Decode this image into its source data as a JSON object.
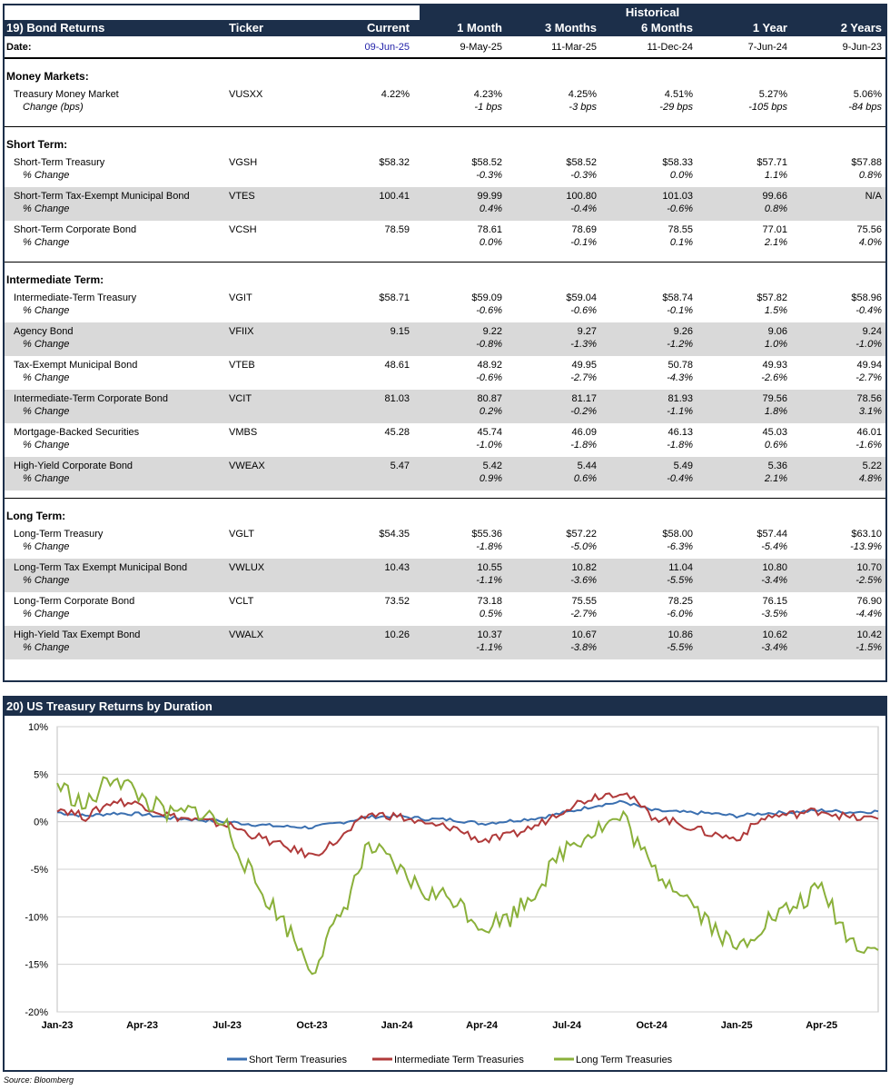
{
  "table": {
    "historical_label": "Historical",
    "header": {
      "title": "19) Bond Returns",
      "ticker": "Ticker",
      "current": "Current",
      "m1": "1 Month",
      "m3": "3 Months",
      "m6": "6 Months",
      "y1": "1 Year",
      "y2": "2 Years"
    },
    "dates": {
      "label": "Date:",
      "current": "09-Jun-25",
      "m1": "9-May-25",
      "m3": "11-Mar-25",
      "m6": "11-Dec-24",
      "y1": "7-Jun-24",
      "y2": "9-Jun-23"
    },
    "sections": [
      {
        "title": "Money Markets:",
        "rows": [
          {
            "name": "Treasury Money Market",
            "ticker": "VUSXX",
            "sub": "Change (bps)",
            "current": "4.22%",
            "m1": "4.23%",
            "m3": "4.25%",
            "m6": "4.51%",
            "y1": "5.27%",
            "y2": "5.06%",
            "c1": "-1 bps",
            "c3": "-3 bps",
            "c6": "-29 bps",
            "cy1": "-105 bps",
            "cy2": "-84 bps"
          }
        ]
      },
      {
        "title": "Short Term:",
        "rows": [
          {
            "name": "Short-Term Treasury",
            "ticker": "VGSH",
            "sub": "% Change",
            "current": "$58.32",
            "m1": "$58.52",
            "m3": "$58.52",
            "m6": "$58.33",
            "y1": "$57.71",
            "y2": "$57.88",
            "c1": "-0.3%",
            "c3": "-0.3%",
            "c6": "0.0%",
            "cy1": "1.1%",
            "cy2": "0.8%"
          },
          {
            "name": "Short-Term Tax-Exempt Municipal Bond",
            "ticker": "VTES",
            "sub": "% Change",
            "current": "100.41",
            "m1": "99.99",
            "m3": "100.80",
            "m6": "101.03",
            "y1": "99.66",
            "y2": "N/A",
            "c1": "0.4%",
            "c3": "-0.4%",
            "c6": "-0.6%",
            "cy1": "0.8%",
            "cy2": ""
          },
          {
            "name": "Short-Term Corporate Bond",
            "ticker": "VCSH",
            "sub": "% Change",
            "current": "78.59",
            "m1": "78.61",
            "m3": "78.69",
            "m6": "78.55",
            "y1": "77.01",
            "y2": "75.56",
            "c1": "0.0%",
            "c3": "-0.1%",
            "c6": "0.1%",
            "cy1": "2.1%",
            "cy2": "4.0%"
          }
        ]
      },
      {
        "title": "Intermediate Term:",
        "rows": [
          {
            "name": "Intermediate-Term Treasury",
            "ticker": "VGIT",
            "sub": "% Change",
            "current": "$58.71",
            "m1": "$59.09",
            "m3": "$59.04",
            "m6": "$58.74",
            "y1": "$57.82",
            "y2": "$58.96",
            "c1": "-0.6%",
            "c3": "-0.6%",
            "c6": "-0.1%",
            "cy1": "1.5%",
            "cy2": "-0.4%"
          },
          {
            "name": "Agency Bond",
            "ticker": "VFIIX",
            "sub": "% Change",
            "current": "9.15",
            "m1": "9.22",
            "m3": "9.27",
            "m6": "9.26",
            "y1": "9.06",
            "y2": "9.24",
            "c1": "-0.8%",
            "c3": "-1.3%",
            "c6": "-1.2%",
            "cy1": "1.0%",
            "cy2": "-1.0%"
          },
          {
            "name": "Tax-Exempt Municipal Bond",
            "ticker": "VTEB",
            "sub": "% Change",
            "current": "48.61",
            "m1": "48.92",
            "m3": "49.95",
            "m6": "50.78",
            "y1": "49.93",
            "y2": "49.94",
            "c1": "-0.6%",
            "c3": "-2.7%",
            "c6": "-4.3%",
            "cy1": "-2.6%",
            "cy2": "-2.7%"
          },
          {
            "name": "Intermediate-Term Corporate Bond",
            "ticker": "VCIT",
            "sub": "% Change",
            "current": "81.03",
            "m1": "80.87",
            "m3": "81.17",
            "m6": "81.93",
            "y1": "79.56",
            "y2": "78.56",
            "c1": "0.2%",
            "c3": "-0.2%",
            "c6": "-1.1%",
            "cy1": "1.8%",
            "cy2": "3.1%"
          },
          {
            "name": "Mortgage-Backed Securities",
            "ticker": "VMBS",
            "sub": "% Change",
            "current": "45.28",
            "m1": "45.74",
            "m3": "46.09",
            "m6": "46.13",
            "y1": "45.03",
            "y2": "46.01",
            "c1": "-1.0%",
            "c3": "-1.8%",
            "c6": "-1.8%",
            "cy1": "0.6%",
            "cy2": "-1.6%"
          },
          {
            "name": "High-Yield Corporate Bond",
            "ticker": "VWEAX",
            "sub": "% Change",
            "current": "5.47",
            "m1": "5.42",
            "m3": "5.44",
            "m6": "5.49",
            "y1": "5.36",
            "y2": "5.22",
            "c1": "0.9%",
            "c3": "0.6%",
            "c6": "-0.4%",
            "cy1": "2.1%",
            "cy2": "4.8%"
          }
        ]
      },
      {
        "title": "Long Term:",
        "rows": [
          {
            "name": "Long-Term Treasury",
            "ticker": "VGLT",
            "sub": "% Change",
            "current": "$54.35",
            "m1": "$55.36",
            "m3": "$57.22",
            "m6": "$58.00",
            "y1": "$57.44",
            "y2": "$63.10",
            "c1": "-1.8%",
            "c3": "-5.0%",
            "c6": "-6.3%",
            "cy1": "-5.4%",
            "cy2": "-13.9%"
          },
          {
            "name": "Long-Term Tax Exempt Municipal Bond",
            "ticker": "VWLUX",
            "sub": "% Change",
            "current": "10.43",
            "m1": "10.55",
            "m3": "10.82",
            "m6": "11.04",
            "y1": "10.80",
            "y2": "10.70",
            "c1": "-1.1%",
            "c3": "-3.6%",
            "c6": "-5.5%",
            "cy1": "-3.4%",
            "cy2": "-2.5%"
          },
          {
            "name": "Long-Term Corporate Bond",
            "ticker": "VCLT",
            "sub": "% Change",
            "current": "73.52",
            "m1": "73.18",
            "m3": "75.55",
            "m6": "78.25",
            "y1": "76.15",
            "y2": "76.90",
            "c1": "0.5%",
            "c3": "-2.7%",
            "c6": "-6.0%",
            "cy1": "-3.5%",
            "cy2": "-4.4%"
          },
          {
            "name": "High-Yield Tax Exempt Bond",
            "ticker": "VWALX",
            "sub": "% Change",
            "current": "10.26",
            "m1": "10.37",
            "m3": "10.67",
            "m6": "10.86",
            "y1": "10.62",
            "y2": "10.42",
            "c1": "-1.1%",
            "c3": "-3.8%",
            "c6": "-5.5%",
            "cy1": "-3.4%",
            "cy2": "-1.5%"
          }
        ]
      }
    ]
  },
  "chart_header": "20)  US Treasury Returns by Duration",
  "source": "Source: Bloomberg",
  "chart_data": {
    "type": "line",
    "title": "US Treasury Returns by Duration",
    "ylim": [
      -20,
      10
    ],
    "yticks": [
      10,
      5,
      0,
      -5,
      -10,
      -15,
      -20
    ],
    "ytick_labels": [
      "10%",
      "5%",
      "0%",
      "-5%",
      "-10%",
      "-15%",
      "-20%"
    ],
    "x_labels": [
      "Jan-23",
      "Apr-23",
      "Jul-23",
      "Oct-23",
      "Jan-24",
      "Apr-24",
      "Jul-24",
      "Oct-24",
      "Jan-25",
      "Apr-25"
    ],
    "x_months": [
      "2023-01",
      "2023-02",
      "2023-03",
      "2023-04",
      "2023-05",
      "2023-06",
      "2023-07",
      "2023-08",
      "2023-09",
      "2023-10",
      "2023-11",
      "2023-12",
      "2024-01",
      "2024-02",
      "2024-03",
      "2024-04",
      "2024-05",
      "2024-06",
      "2024-07",
      "2024-08",
      "2024-09",
      "2024-10",
      "2024-11",
      "2024-12",
      "2025-01",
      "2025-02",
      "2025-03",
      "2025-04",
      "2025-05",
      "2025-06"
    ],
    "legend_position": "bottom",
    "series": [
      {
        "name": "Short Term Treasuries",
        "color": "#3a6fb0",
        "values": [
          1.0,
          0.6,
          0.9,
          0.8,
          0.4,
          0.2,
          0.0,
          -0.3,
          -0.5,
          -0.6,
          -0.1,
          0.5,
          0.6,
          0.3,
          0.2,
          -0.2,
          0.1,
          0.4,
          1.0,
          1.7,
          2.1,
          1.2,
          1.0,
          0.9,
          0.6,
          0.9,
          1.0,
          1.2,
          1.0,
          1.1
        ]
      },
      {
        "name": "Intermediate Term Treasuries",
        "color": "#b03a3a",
        "values": [
          1.5,
          0.5,
          2.2,
          1.8,
          0.6,
          0.1,
          -0.3,
          -1.5,
          -2.6,
          -3.6,
          -1.8,
          0.8,
          0.6,
          -0.3,
          -0.6,
          -2.0,
          -1.5,
          -0.3,
          1.5,
          2.7,
          3.2,
          0.6,
          -0.2,
          -1.2,
          -1.8,
          0.5,
          0.8,
          1.2,
          0.4,
          0.3
        ]
      },
      {
        "name": "Long Term Treasuries",
        "color": "#8ab03a",
        "values": [
          4.0,
          1.5,
          5.0,
          2.5,
          0.6,
          1.2,
          -0.5,
          -6.5,
          -10.5,
          -15.5,
          -10.0,
          -2.5,
          -5.0,
          -7.5,
          -8.0,
          -11.0,
          -10.0,
          -6.8,
          -2.5,
          -0.8,
          0.5,
          -5.0,
          -7.0,
          -10.5,
          -13.5,
          -10.5,
          -9.0,
          -7.0,
          -12.5,
          -13.5
        ]
      }
    ]
  }
}
